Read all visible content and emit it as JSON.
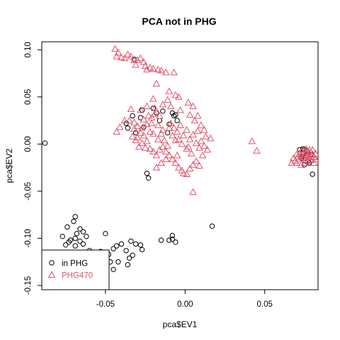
{
  "chart_data": {
    "type": "scatter",
    "title": "PCA not in PHG",
    "xlabel": "pca$EV1",
    "ylabel": "pca$EV2",
    "xlim": [
      -0.09,
      0.0835
    ],
    "ylim": [
      -0.1545,
      0.1085
    ],
    "xticks": [
      -0.05,
      0.0,
      0.05
    ],
    "xtick_labels": [
      "-0.05",
      "0.00",
      "0.05"
    ],
    "yticks": [
      -0.15,
      -0.1,
      -0.05,
      0.0,
      0.05,
      0.1
    ],
    "ytick_labels": [
      "-0.15",
      "-0.10",
      "-0.05",
      "0.00",
      "0.05",
      "0.10"
    ],
    "grid": false,
    "legend": {
      "placement": "bottom-left",
      "entries": [
        {
          "label": "in PHG",
          "marker": "circle",
          "color": "#000000"
        },
        {
          "label": "PHG470",
          "marker": "triangle",
          "color": "#DF536B"
        }
      ]
    },
    "series": [
      {
        "name": "in PHG",
        "marker": "circle",
        "color": "#000000",
        "points": [
          [
            -0.088,
            0.001
          ],
          [
            -0.069,
            -0.077
          ],
          [
            -0.07,
            -0.082
          ],
          [
            -0.074,
            -0.088
          ],
          [
            -0.066,
            -0.09
          ],
          [
            -0.068,
            -0.095
          ],
          [
            -0.064,
            -0.093
          ],
          [
            -0.062,
            -0.098
          ],
          [
            -0.069,
            -0.1
          ],
          [
            -0.077,
            -0.098
          ],
          [
            -0.072,
            -0.102
          ],
          [
            -0.073,
            -0.104
          ],
          [
            -0.066,
            -0.103
          ],
          [
            -0.064,
            -0.106
          ],
          [
            -0.069,
            -0.108
          ],
          [
            -0.075,
            -0.107
          ],
          [
            -0.05,
            -0.095
          ],
          [
            -0.06,
            -0.113
          ],
          [
            -0.057,
            -0.12
          ],
          [
            -0.053,
            -0.114
          ],
          [
            -0.048,
            -0.117
          ],
          [
            -0.045,
            -0.111
          ],
          [
            -0.043,
            -0.108
          ],
          [
            -0.04,
            -0.106
          ],
          [
            -0.037,
            -0.113
          ],
          [
            -0.034,
            -0.103
          ],
          [
            -0.031,
            -0.106
          ],
          [
            -0.033,
            -0.118
          ],
          [
            -0.035,
            -0.121
          ],
          [
            -0.036,
            -0.128
          ],
          [
            -0.042,
            -0.125
          ],
          [
            -0.045,
            -0.133
          ],
          [
            -0.027,
            -0.112
          ],
          [
            -0.028,
            -0.107
          ],
          [
            -0.015,
            -0.102
          ],
          [
            -0.008,
            -0.101
          ],
          [
            -0.01,
            -0.102
          ],
          [
            -0.006,
            -0.104
          ],
          [
            -0.008,
            -0.097
          ],
          [
            0.017,
            -0.087
          ],
          [
            -0.032,
            0.09
          ],
          [
            -0.037,
            0.022
          ],
          [
            -0.036,
            0.017
          ],
          [
            -0.033,
            0.03
          ],
          [
            -0.031,
            0.012
          ],
          [
            -0.028,
            0.028
          ],
          [
            -0.027,
            0.036
          ],
          [
            -0.026,
            0.018
          ],
          [
            -0.024,
            -0.031
          ],
          [
            -0.023,
            -0.036
          ],
          [
            -0.02,
            0.038
          ],
          [
            -0.018,
            0.033
          ],
          [
            -0.016,
            0.025
          ],
          [
            -0.014,
            0.035
          ],
          [
            -0.011,
            0.012
          ],
          [
            -0.01,
            0.021
          ],
          [
            -0.008,
            0.033
          ],
          [
            -0.007,
            0.03
          ],
          [
            -0.005,
            0.025
          ],
          [
            -0.006,
            0.031
          ],
          [
            0.072,
            -0.006
          ],
          [
            0.074,
            -0.005
          ],
          [
            0.075,
            -0.006
          ],
          [
            0.077,
            -0.008
          ],
          [
            0.076,
            -0.012
          ],
          [
            0.074,
            -0.013
          ],
          [
            0.073,
            -0.015
          ],
          [
            0.077,
            -0.018
          ],
          [
            0.079,
            -0.011
          ],
          [
            0.08,
            -0.032
          ],
          [
            0.075,
            -0.022
          ],
          [
            0.078,
            -0.02
          ],
          [
            -0.064,
            -0.116
          ],
          [
            -0.058,
            -0.148
          ],
          [
            -0.061,
            -0.14
          ],
          [
            -0.052,
            -0.128
          ],
          [
            -0.047,
            -0.125
          ]
        ]
      },
      {
        "name": "PHG470",
        "marker": "triangle",
        "color": "#DF536B",
        "points": [
          [
            -0.044,
            0.101
          ],
          [
            -0.042,
            0.097
          ],
          [
            -0.04,
            0.092
          ],
          [
            -0.038,
            0.091
          ],
          [
            -0.036,
            0.095
          ],
          [
            -0.034,
            0.093
          ],
          [
            -0.032,
            0.089
          ],
          [
            -0.031,
            0.084
          ],
          [
            -0.028,
            0.091
          ],
          [
            -0.026,
            0.087
          ],
          [
            -0.025,
            0.083
          ],
          [
            -0.022,
            0.081
          ],
          [
            -0.02,
            0.08
          ],
          [
            -0.017,
            0.079
          ],
          [
            -0.015,
            0.078
          ],
          [
            -0.012,
            0.076
          ],
          [
            -0.007,
            0.076
          ],
          [
            -0.043,
            0.093
          ],
          [
            -0.03,
            0.089
          ],
          [
            -0.024,
            0.079
          ],
          [
            -0.018,
            0.064
          ],
          [
            -0.01,
            0.056
          ],
          [
            -0.006,
            0.052
          ],
          [
            -0.02,
            0.048
          ],
          [
            -0.034,
            0.037
          ],
          [
            -0.035,
            0.025
          ],
          [
            -0.033,
            0.008
          ],
          [
            -0.031,
            0.004
          ],
          [
            -0.029,
            -0.003
          ],
          [
            -0.027,
            0.017
          ],
          [
            -0.024,
            0.021
          ],
          [
            -0.022,
            0.013
          ],
          [
            -0.021,
            0.028
          ],
          [
            -0.019,
            0.032
          ],
          [
            -0.017,
            0.02
          ],
          [
            -0.015,
            0.011
          ],
          [
            -0.013,
            0.004
          ],
          [
            -0.011,
            -0.002
          ],
          [
            -0.01,
            0.017
          ],
          [
            -0.008,
            0.009
          ],
          [
            -0.006,
            0.004
          ],
          [
            -0.005,
            0.013
          ],
          [
            -0.003,
            0.02
          ],
          [
            -0.001,
            0.009
          ],
          [
            0.001,
            0.015
          ],
          [
            0.003,
            0.005
          ],
          [
            0.005,
            0.01
          ],
          [
            0.007,
            0.001
          ],
          [
            0.008,
            0.014
          ],
          [
            0.01,
            0.003
          ],
          [
            0.012,
            -0.002
          ],
          [
            0.013,
            0.008
          ],
          [
            0.006,
            0.025
          ],
          [
            0.008,
            0.03
          ],
          [
            0.003,
            0.031
          ],
          [
            -0.003,
            0.036
          ],
          [
            -0.009,
            0.04
          ],
          [
            -0.014,
            0.042
          ],
          [
            -0.019,
            0.038
          ],
          [
            -0.024,
            0.04
          ],
          [
            -0.028,
            0.036
          ],
          [
            -0.038,
            0.025
          ],
          [
            -0.041,
            0.018
          ],
          [
            -0.043,
            0.013
          ],
          [
            -0.032,
            0.023
          ],
          [
            -0.03,
            0.019
          ],
          [
            -0.028,
            0.012
          ],
          [
            -0.026,
            0.009
          ],
          [
            -0.024,
            0.003
          ],
          [
            -0.022,
            -0.005
          ],
          [
            -0.02,
            -0.008
          ],
          [
            -0.018,
            -0.012
          ],
          [
            -0.016,
            -0.006
          ],
          [
            -0.014,
            -0.003
          ],
          [
            -0.012,
            -0.008
          ],
          [
            -0.01,
            -0.012
          ],
          [
            -0.008,
            -0.016
          ],
          [
            -0.006,
            -0.02
          ],
          [
            -0.004,
            -0.025
          ],
          [
            -0.002,
            -0.028
          ],
          [
            -0.001,
            -0.031
          ],
          [
            0.001,
            -0.032
          ],
          [
            0.003,
            -0.026
          ],
          [
            0.005,
            -0.022
          ],
          [
            0.007,
            -0.018
          ],
          [
            0.009,
            -0.023
          ],
          [
            -0.012,
            -0.016
          ],
          [
            -0.015,
            -0.02
          ],
          [
            -0.018,
            -0.025
          ],
          [
            -0.025,
            -0.004
          ],
          [
            -0.027,
            0.001
          ],
          [
            -0.03,
            0.007
          ],
          [
            -0.017,
            0.005
          ],
          [
            -0.014,
            0.015
          ],
          [
            -0.009,
            0.022
          ],
          [
            -0.007,
            0.017
          ],
          [
            -0.004,
            0.005
          ],
          [
            -0.002,
            0.0
          ],
          [
            0.002,
            -0.003
          ],
          [
            0.004,
            -0.01
          ],
          [
            0.001,
            -0.005
          ],
          [
            -0.005,
            -0.012
          ],
          [
            0.005,
            0.04
          ],
          [
            0.002,
            0.044
          ],
          [
            -0.004,
            0.05
          ],
          [
            -0.011,
            0.047
          ],
          [
            -0.016,
            0.03
          ],
          [
            -0.021,
            0.022
          ],
          [
            -0.023,
            0.03
          ],
          [
            0.01,
            0.02
          ],
          [
            0.012,
            0.015
          ],
          [
            0.016,
            0.006
          ],
          [
            0.014,
            -0.006
          ],
          [
            0.011,
            -0.012
          ],
          [
            0.009,
            -0.004
          ],
          [
            -0.02,
            0.011
          ],
          [
            -0.026,
            0.026
          ],
          [
            -0.032,
            0.016
          ],
          [
            0.005,
            -0.051
          ],
          [
            0.042,
            0.003
          ],
          [
            0.045,
            -0.007
          ],
          [
            0.067,
            -0.02
          ],
          [
            0.069,
            -0.018
          ],
          [
            0.07,
            -0.02
          ],
          [
            0.071,
            -0.013
          ],
          [
            0.072,
            -0.01
          ],
          [
            0.072,
            -0.016
          ],
          [
            0.073,
            -0.012
          ],
          [
            0.073,
            -0.008
          ],
          [
            0.074,
            -0.01
          ],
          [
            0.074,
            -0.014
          ],
          [
            0.075,
            -0.012
          ],
          [
            0.075,
            -0.008
          ],
          [
            0.076,
            -0.01
          ],
          [
            0.076,
            -0.015
          ],
          [
            0.077,
            -0.012
          ],
          [
            0.077,
            -0.008
          ],
          [
            0.078,
            -0.014
          ],
          [
            0.078,
            -0.01
          ],
          [
            0.079,
            -0.013
          ],
          [
            0.079,
            -0.017
          ],
          [
            0.08,
            -0.011
          ],
          [
            0.081,
            -0.014
          ],
          [
            0.082,
            -0.01
          ],
          [
            0.081,
            -0.02
          ],
          [
            0.075,
            -0.02
          ],
          [
            0.073,
            -0.022
          ],
          [
            0.077,
            -0.018
          ],
          [
            0.074,
            -0.006
          ],
          [
            0.076,
            -0.005
          ],
          [
            0.078,
            -0.006
          ],
          [
            0.08,
            -0.006
          ],
          [
            0.082,
            -0.016
          ],
          [
            0.07,
            -0.011
          ],
          [
            0.068,
            -0.015
          ]
        ]
      }
    ]
  }
}
